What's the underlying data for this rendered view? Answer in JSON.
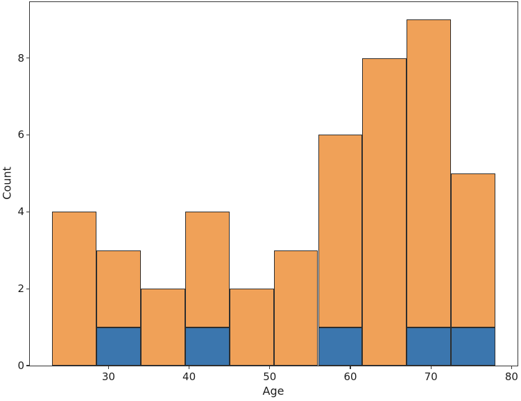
{
  "figure": {
    "background": "#ffffff",
    "spine_color": "#333333",
    "text_color": "#1c1c1c"
  },
  "chart_data": {
    "type": "bar",
    "subtype": "stacked-histogram",
    "title": "",
    "xlabel": "Age",
    "ylabel": "Count",
    "grid": false,
    "legend": false,
    "bin_edges": [
      23,
      28.5,
      34,
      39.5,
      45,
      50.5,
      56,
      61.5,
      67,
      72.5,
      78
    ],
    "series": [
      {
        "name": "blue-bottom-series",
        "color": "#3b76ae",
        "values": [
          0,
          1,
          0,
          1,
          0,
          0,
          1,
          0,
          1,
          1
        ]
      },
      {
        "name": "orange-top-series",
        "color": "#f0a158",
        "values": [
          4,
          2,
          2,
          3,
          2,
          3,
          5,
          8,
          8,
          4
        ]
      }
    ],
    "totals": [
      4,
      3,
      2,
      4,
      2,
      3,
      6,
      8,
      9,
      5
    ],
    "bar_edge_color": "#2d2d2d",
    "xticks": [
      30,
      40,
      50,
      60,
      70,
      80
    ],
    "yticks": [
      0,
      2,
      4,
      6,
      8
    ],
    "xlim": [
      20.25,
      80.75
    ],
    "ylim": [
      0,
      9.45
    ]
  }
}
